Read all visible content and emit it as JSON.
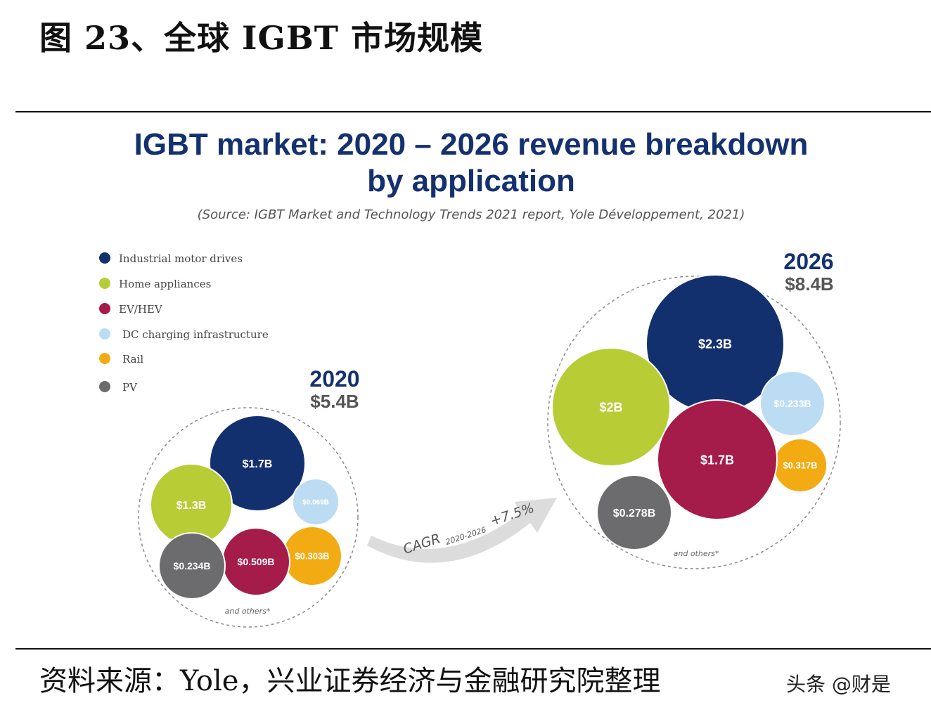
{
  "figure_title": "图 23、全球 IGBT 市场规模",
  "footer": {
    "source": "资料来源：Yole，兴业证券经济与金融研究院整理",
    "watermark": "头条 @财是"
  },
  "colors": {
    "navy": "#13306e",
    "title": "#14316f",
    "lime": "#b8cc36",
    "crimson": "#a51b4a",
    "lightblue": "#bcdcf3",
    "amber": "#f2ab13",
    "gray": "#6c6c6e"
  },
  "chart_data": {
    "type": "bubble",
    "title": "IGBT market: 2020 – 2026 revenue breakdown",
    "title_line2": "by application",
    "subtitle": "(Source: IGBT Market and Technology Trends 2021 report, Yole Développement, 2021)",
    "unit": "USD billion",
    "legend": [
      {
        "name": "Industrial motor drives",
        "color": "#13306e"
      },
      {
        "name": "Home appliances",
        "color": "#b8cc36"
      },
      {
        "name": "EV/HEV",
        "color": "#a51b4a"
      },
      {
        "name": "DC charging infrastructure",
        "color": "#bcdcf3"
      },
      {
        "name": "Rail",
        "color": "#f2ab13"
      },
      {
        "name": "PV",
        "color": "#6c6c6e"
      }
    ],
    "years": [
      {
        "year": "2020",
        "total_label": "$5.4B",
        "total": 5.4,
        "footnote": "and others*",
        "bubbles": [
          {
            "category": "Industrial motor drives",
            "value": 1.7,
            "label": "$1.7B"
          },
          {
            "category": "Home appliances",
            "value": 1.3,
            "label": "$1.3B"
          },
          {
            "category": "EV/HEV",
            "value": 0.509,
            "label": "$0.509B"
          },
          {
            "category": "DC charging infrastructure",
            "value": 0.069,
            "label": "$0.069B"
          },
          {
            "category": "Rail",
            "value": 0.303,
            "label": "$0.303B"
          },
          {
            "category": "PV",
            "value": 0.234,
            "label": "$0.234B"
          }
        ]
      },
      {
        "year": "2026",
        "total_label": "$8.4B",
        "total": 8.4,
        "footnote": "and others*",
        "bubbles": [
          {
            "category": "Industrial motor drives",
            "value": 2.3,
            "label": "$2.3B"
          },
          {
            "category": "Home appliances",
            "value": 2.0,
            "label": "$2B"
          },
          {
            "category": "EV/HEV",
            "value": 1.7,
            "label": "$1.7B"
          },
          {
            "category": "DC charging infrastructure",
            "value": 0.233,
            "label": "$0.233B"
          },
          {
            "category": "Rail",
            "value": 0.317,
            "label": "$0.317B"
          },
          {
            "category": "PV",
            "value": 0.278,
            "label": "$0.278B"
          }
        ]
      }
    ],
    "cagr": {
      "label": "CAGR",
      "period": "2020-2026",
      "value": "+7.5%"
    }
  }
}
